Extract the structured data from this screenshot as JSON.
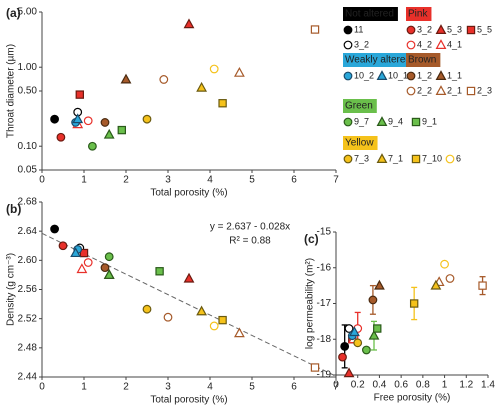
{
  "legend": [
    {
      "group": "Not altered",
      "color": "#000000",
      "text_color": "#ffffff",
      "samples": [
        {
          "name": "11",
          "marker": "circle",
          "fill": "#000000",
          "stroke": "#000000"
        },
        {
          "name": "3_2",
          "marker": "circle",
          "fill": "#ffffff",
          "stroke": "#000000"
        }
      ]
    },
    {
      "group": "Pink",
      "color": "#e8302a",
      "text_color": "#000000",
      "samples": [
        {
          "name": "3_2",
          "marker": "circle",
          "fill": "#e8302a",
          "stroke": "#6a1a10"
        },
        {
          "name": "5_3",
          "marker": "triangle",
          "fill": "#e8302a",
          "stroke": "#6a1a10"
        },
        {
          "name": "5_5",
          "marker": "square",
          "fill": "#e8302a",
          "stroke": "#6a1a10"
        },
        {
          "name": "4_2",
          "marker": "circle",
          "fill": "#ffffff",
          "stroke": "#e8302a"
        },
        {
          "name": "4_1",
          "marker": "triangle",
          "fill": "#ffffff",
          "stroke": "#e8302a"
        }
      ]
    },
    {
      "group": "Weakly altered",
      "color": "#2aa7d9",
      "text_color": "#000000",
      "samples": [
        {
          "name": "10_2",
          "marker": "circle",
          "fill": "#2aa7d9",
          "stroke": "#1a4a6a"
        },
        {
          "name": "10_1",
          "marker": "triangle",
          "fill": "#2aa7d9",
          "stroke": "#1a4a6a"
        }
      ]
    },
    {
      "group": "Brown",
      "color": "#a65a2a",
      "text_color": "#000000",
      "samples": [
        {
          "name": "1_2",
          "marker": "circle",
          "fill": "#a65a2a",
          "stroke": "#4a2a10"
        },
        {
          "name": "1_1",
          "marker": "triangle",
          "fill": "#a65a2a",
          "stroke": "#4a2a10"
        },
        {
          "name": "2_2",
          "marker": "circle",
          "fill": "#ffffff",
          "stroke": "#a65a2a"
        },
        {
          "name": "2_1",
          "marker": "triangle",
          "fill": "#ffffff",
          "stroke": "#a65a2a"
        },
        {
          "name": "2_3",
          "marker": "square",
          "fill": "#ffffff",
          "stroke": "#a65a2a"
        }
      ]
    },
    {
      "group": "Green",
      "color": "#6abf4b",
      "text_color": "#000000",
      "samples": [
        {
          "name": "9_7",
          "marker": "circle",
          "fill": "#6abf4b",
          "stroke": "#2a5a1a"
        },
        {
          "name": "9_4",
          "marker": "triangle",
          "fill": "#6abf4b",
          "stroke": "#2a5a1a"
        },
        {
          "name": "9_1",
          "marker": "square",
          "fill": "#6abf4b",
          "stroke": "#2a5a1a"
        }
      ]
    },
    {
      "group": "Yellow",
      "color": "#f5c21b",
      "text_color": "#000000",
      "samples": [
        {
          "name": "7_3",
          "marker": "circle",
          "fill": "#f5c21b",
          "stroke": "#6a5a10"
        },
        {
          "name": "7_1",
          "marker": "triangle",
          "fill": "#f5c21b",
          "stroke": "#6a5a10"
        },
        {
          "name": "7_10",
          "marker": "square",
          "fill": "#f5c21b",
          "stroke": "#6a5a10"
        },
        {
          "name": "6",
          "marker": "circle",
          "fill": "#ffffff",
          "stroke": "#f5c21b"
        }
      ]
    }
  ],
  "chart_data": [
    {
      "type": "scatter",
      "label": "(a)",
      "xlabel": "Total porosity (%)",
      "ylabel": "Throat diameter (µm)",
      "xlim": [
        0,
        7
      ],
      "ylim": [
        0.05,
        5
      ],
      "yscale": "log",
      "xticks": [
        0,
        1,
        2,
        3,
        4,
        5,
        6,
        7
      ],
      "yticks": [
        0.05,
        {
          "value": 0.1,
          "label": "0.10"
        },
        {
          "value": 0.5,
          "label": "0.50"
        },
        {
          "value": 1,
          "label": "1.00"
        },
        {
          "value": 5,
          "label": "5.00"
        }
      ],
      "x": [
        0.3,
        0.85,
        0.45,
        3.5,
        0.9,
        1.1,
        0.85,
        0.8,
        0.85,
        1.5,
        2.0,
        2.9,
        4.7,
        6.5,
        1.2,
        1.6,
        1.9,
        2.5,
        3.8,
        4.3,
        4.1
      ],
      "values": [
        0.22,
        0.27,
        0.13,
        3.5,
        0.45,
        0.21,
        0.19,
        0.2,
        0.22,
        0.2,
        0.7,
        0.7,
        0.85,
        3.0,
        0.1,
        0.14,
        0.16,
        0.22,
        0.55,
        0.35,
        0.95
      ]
    },
    {
      "type": "scatter",
      "label": "(b)",
      "xlabel": "Total porosity (%)",
      "ylabel": "Density (g cm⁻³)",
      "xlim": [
        0,
        7
      ],
      "ylim": [
        2.44,
        2.68
      ],
      "xticks": [
        0,
        1,
        2,
        3,
        4,
        5,
        6,
        7
      ],
      "yticks": [
        2.44,
        2.48,
        2.52,
        2.56,
        {
          "value": 2.6,
          "label": "2.60"
        },
        2.64,
        2.68
      ],
      "annotations": [
        "y = 2.637 - 0.028x",
        "R² = 0.88"
      ],
      "trendline": {
        "intercept": 2.637,
        "slope": -0.028
      },
      "x": [
        0.3,
        0.9,
        0.5,
        3.5,
        1.0,
        1.1,
        0.95,
        0.85,
        0.8,
        1.5,
        1.6,
        3.0,
        4.7,
        6.5,
        1.6,
        1.6,
        2.8,
        2.5,
        3.8,
        4.3,
        4.1
      ],
      "values": [
        2.643,
        2.617,
        2.62,
        2.575,
        2.61,
        2.597,
        2.588,
        2.615,
        2.61,
        2.59,
        2.58,
        2.522,
        2.5,
        2.453,
        2.605,
        2.58,
        2.585,
        2.533,
        2.53,
        2.518,
        2.51
      ]
    },
    {
      "type": "scatter",
      "label": "(c)",
      "xlabel": "Free porosity (%)",
      "ylabel": "log permeability (m²)",
      "xlim": [
        0,
        1.4
      ],
      "ylim": [
        -19,
        -15
      ],
      "xticks": [
        0,
        0.2,
        0.4,
        0.6,
        0.8,
        1,
        1.2,
        1.4
      ],
      "yticks": [
        -19,
        -18,
        -17,
        -16,
        -15
      ],
      "x": [
        0.08,
        0.12,
        0.06,
        0.12,
        0.15,
        0.2,
        0.16,
        0.15,
        0.17,
        0.34,
        0.4,
        1.05,
        0.95,
        1.35,
        0.28,
        0.35,
        0.38,
        0.2,
        0.92,
        0.72,
        1.0
      ],
      "values": [
        -18.2,
        -17.7,
        -18.5,
        -18.95,
        -18.0,
        -17.7,
        -18.0,
        -17.9,
        -17.8,
        -16.9,
        -16.5,
        -16.3,
        -16.4,
        -16.5,
        -18.3,
        -17.9,
        -17.7,
        -18.1,
        -16.5,
        -17.0,
        -15.9
      ],
      "errors": [
        0.6,
        null,
        null,
        null,
        null,
        0.45,
        null,
        null,
        null,
        0.4,
        null,
        null,
        null,
        0.25,
        null,
        0.4,
        null,
        null,
        null,
        0.45,
        null
      ]
    }
  ]
}
